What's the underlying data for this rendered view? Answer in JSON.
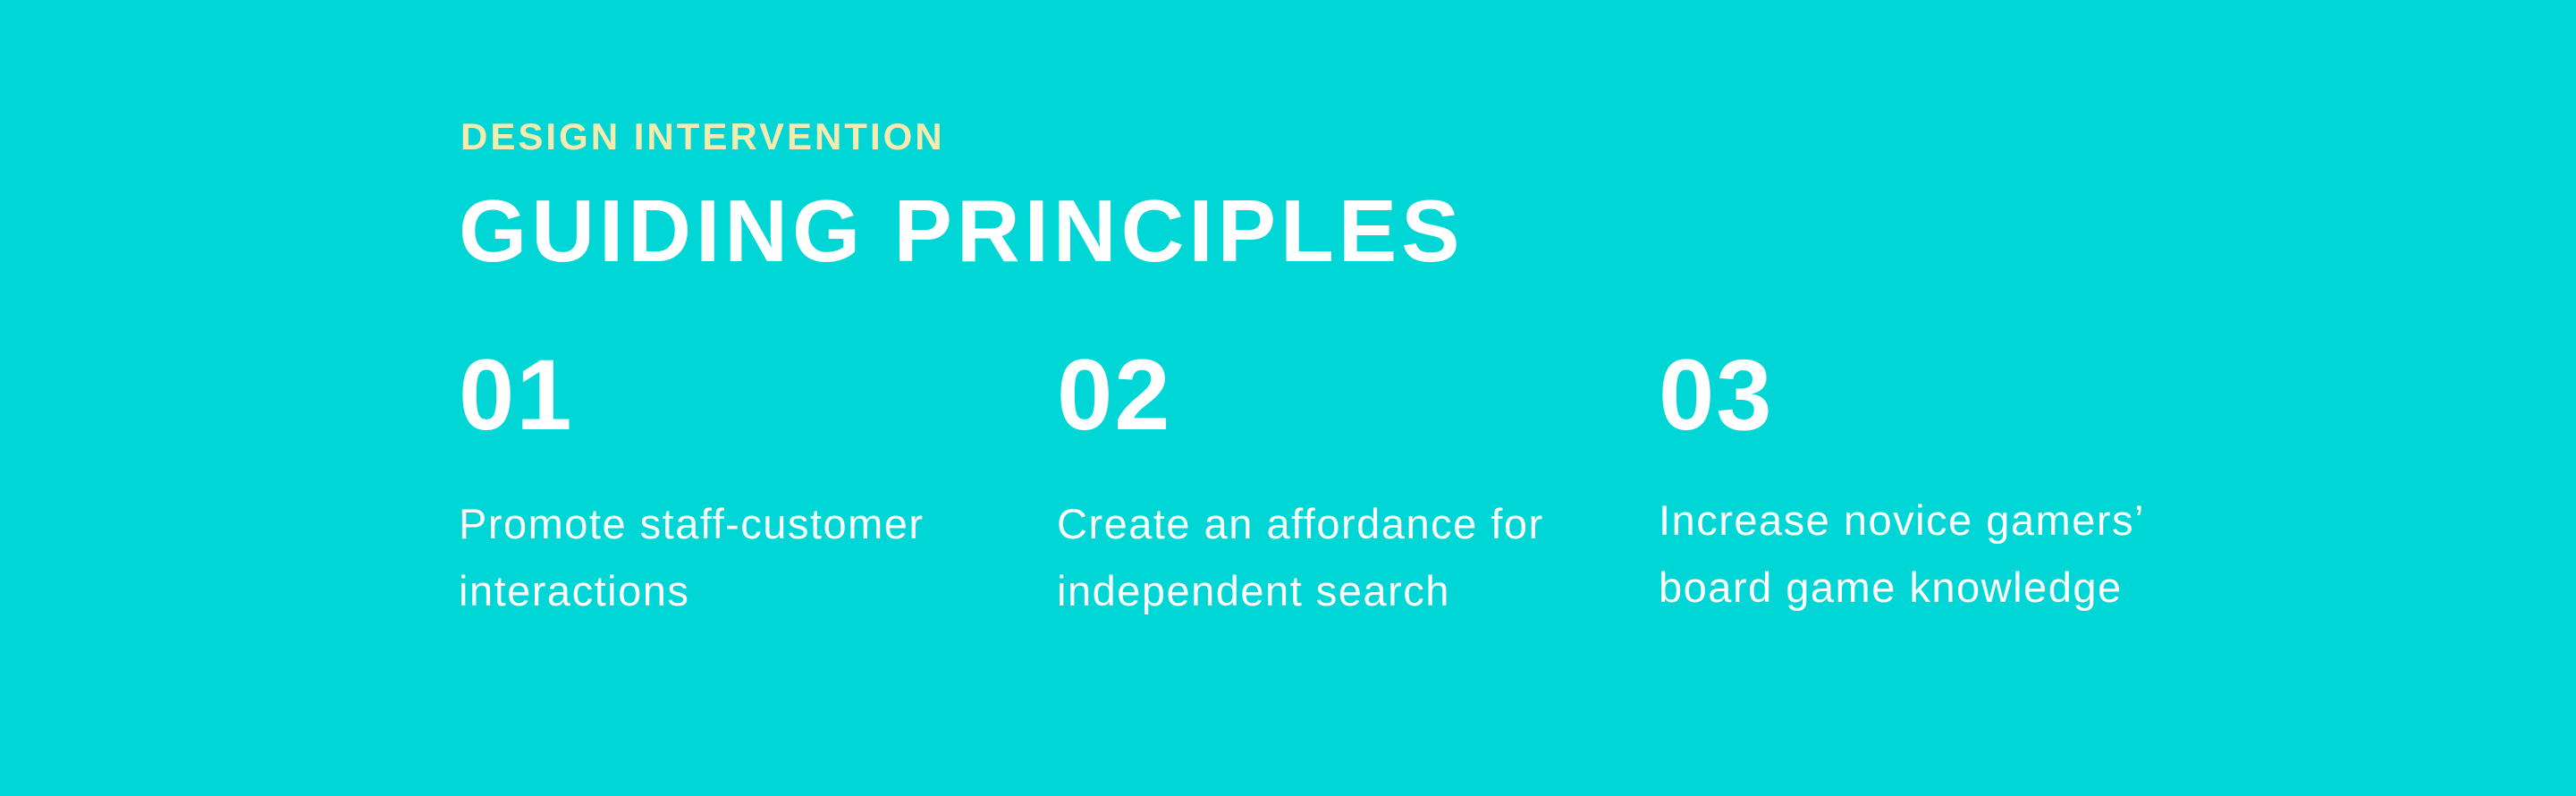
{
  "header": {
    "eyebrow": "DESIGN INTERVENTION",
    "title": "GUIDING PRINCIPLES"
  },
  "principles": [
    {
      "number": "01",
      "text": "Promote staff-customer interactions"
    },
    {
      "number": "02",
      "text": "Create an affordance for independent search"
    },
    {
      "number": "03",
      "text": "Increase novice gamers’ board game knowledge"
    }
  ],
  "colors": {
    "background": "#00d6d6",
    "eyebrow": "#f6ebae",
    "text": "#ffffff"
  }
}
